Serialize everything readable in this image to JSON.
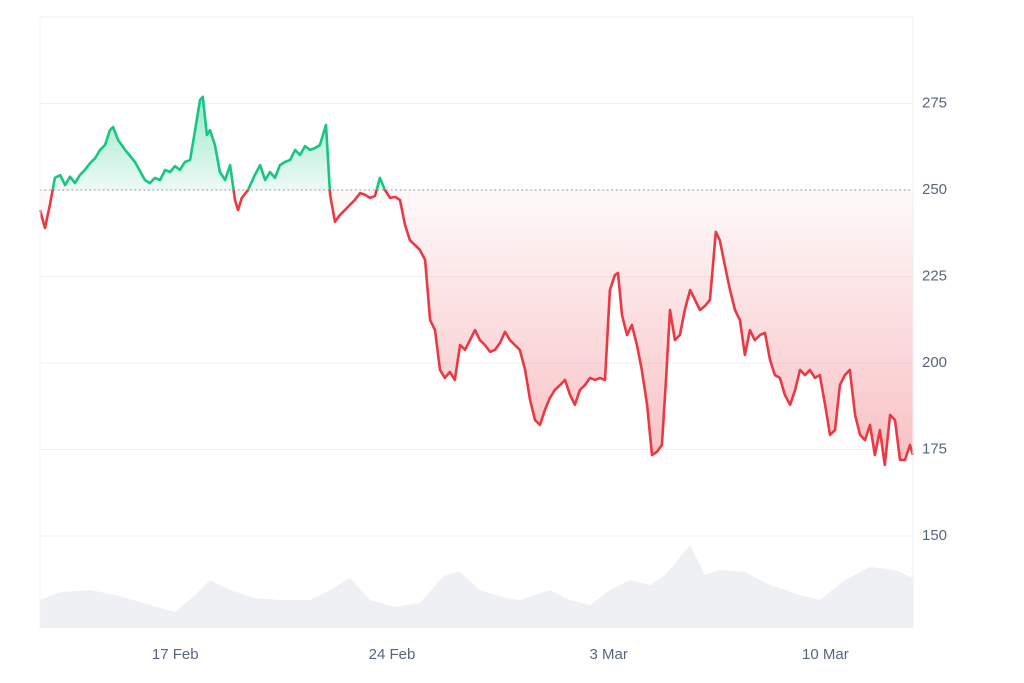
{
  "chart_data": {
    "type": "line",
    "baseline": 250,
    "up_color": "#16c784",
    "down_color": "#ea3943",
    "volume_color": "#eef0f3",
    "grid": true,
    "xlim": [
      43.63,
      71.83
    ],
    "xticks": [
      {
        "value": 48,
        "label": "17 Feb"
      },
      {
        "value": 55,
        "label": "24 Feb"
      },
      {
        "value": 62,
        "label": "3 Mar"
      },
      {
        "value": 69,
        "label": "10 Mar"
      }
    ],
    "ylim": [
      123.4,
      300
    ],
    "yticks": [
      150,
      175,
      200,
      225,
      250,
      275
    ],
    "y2lim": [
      0,
      100
    ],
    "x": [
      43.63,
      43.79,
      43.95,
      44.11,
      44.28,
      44.44,
      44.6,
      44.76,
      44.92,
      45.08,
      45.25,
      45.41,
      45.57,
      45.73,
      45.89,
      45.99,
      46.15,
      46.38,
      46.7,
      47.02,
      47.18,
      47.34,
      47.51,
      47.67,
      47.83,
      47.99,
      48.15,
      48.31,
      48.48,
      48.64,
      48.8,
      48.89,
      49.02,
      49.12,
      49.28,
      49.44,
      49.61,
      49.77,
      49.93,
      50.03,
      50.15,
      50.35,
      50.57,
      50.74,
      50.9,
      51.06,
      51.22,
      51.38,
      51.54,
      51.71,
      51.87,
      52.03,
      52.19,
      52.35,
      52.51,
      52.67,
      52.87,
      53.0,
      53.16,
      53.32,
      53.48,
      53.64,
      53.8,
      53.97,
      54.13,
      54.29,
      54.45,
      54.61,
      54.77,
      54.94,
      55.1,
      55.26,
      55.42,
      55.58,
      55.74,
      55.9,
      56.07,
      56.23,
      56.39,
      56.55,
      56.71,
      56.87,
      57.03,
      57.2,
      57.36,
      57.52,
      57.68,
      57.84,
      58.0,
      58.17,
      58.33,
      58.49,
      58.65,
      58.81,
      58.97,
      59.13,
      59.3,
      59.46,
      59.62,
      59.78,
      59.94,
      60.1,
      60.26,
      60.43,
      60.59,
      60.75,
      60.91,
      61.07,
      61.23,
      61.4,
      61.56,
      61.72,
      61.88,
      62.04,
      62.2,
      62.3,
      62.43,
      62.59,
      62.75,
      62.91,
      63.07,
      63.24,
      63.4,
      63.56,
      63.72,
      63.85,
      63.98,
      64.14,
      64.3,
      64.46,
      64.63,
      64.79,
      64.95,
      65.11,
      65.27,
      65.37,
      65.46,
      65.59,
      65.75,
      65.92,
      66.08,
      66.24,
      66.4,
      66.56,
      66.72,
      66.89,
      67.05,
      67.21,
      67.37,
      67.53,
      67.69,
      67.86,
      68.02,
      68.18,
      68.34,
      68.5,
      68.66,
      68.82,
      68.99,
      69.15,
      69.31,
      69.47,
      69.63,
      69.79,
      69.96,
      70.12,
      70.28,
      70.44,
      70.6,
      70.76,
      70.92,
      71.09,
      71.25,
      71.41,
      71.57,
      71.73,
      71.83
    ],
    "series": [
      {
        "values": [
          244.2,
          239,
          245.7,
          253.5,
          254.3,
          251.4,
          253.8,
          252,
          254.3,
          255.8,
          257.8,
          259.2,
          261.6,
          263,
          267.3,
          268.2,
          264.5,
          261.6,
          258.1,
          252.9,
          252,
          253.5,
          252.9,
          255.8,
          255.2,
          256.9,
          255.8,
          258.1,
          258.7,
          267.3,
          276,
          276.9,
          265.9,
          267.3,
          263,
          255.2,
          252.9,
          257.2,
          247.1,
          244.2,
          247.7,
          250,
          254.3,
          257.2,
          252.9,
          255.2,
          253.5,
          257.2,
          258.1,
          258.7,
          261.6,
          260.1,
          262.7,
          261.6,
          262.1,
          263,
          268.8,
          248.6,
          240.8,
          242.8,
          244.2,
          245.7,
          247.1,
          249.1,
          248.6,
          247.7,
          248.3,
          253.5,
          250,
          247.7,
          248,
          247.1,
          239.9,
          235.5,
          234.1,
          232.7,
          229.8,
          212.4,
          209.5,
          198,
          195.7,
          197.4,
          195.1,
          205.2,
          203.8,
          206.6,
          209.5,
          206.6,
          205.2,
          203.2,
          203.8,
          205.8,
          209,
          206.6,
          205.2,
          203.8,
          198,
          189.3,
          183.5,
          182.1,
          186.4,
          189.9,
          192.2,
          193.6,
          195.1,
          190.8,
          187.9,
          192.2,
          193.6,
          195.7,
          195.1,
          195.7,
          195.1,
          221.1,
          225.4,
          226,
          213.9,
          208.1,
          211,
          205.2,
          198,
          187.9,
          173.4,
          174.3,
          176.3,
          195.1,
          215.3,
          206.6,
          208.1,
          215.3,
          221.1,
          218.2,
          215.3,
          216.5,
          218.2,
          228.3,
          237.9,
          235.5,
          228.3,
          221.1,
          215.3,
          212.4,
          202.3,
          209.5,
          206.6,
          208.1,
          208.7,
          200.9,
          196.5,
          195.7,
          190.8,
          187.9,
          192.2,
          198,
          196.5,
          198,
          195.7,
          196.5,
          187.9,
          179.2,
          180.6,
          193.6,
          196.5,
          198,
          185,
          179.2,
          177.7,
          182.1,
          173.4,
          180.6,
          170.5,
          185,
          183.5,
          172,
          172,
          176.3,
          173.4
        ]
      }
    ],
    "volume": {
      "axis": "y2",
      "x": [
        43.63,
        44.28,
        45.25,
        46.21,
        47.18,
        47.99,
        48.64,
        49.12,
        49.77,
        50.57,
        51.38,
        52.35,
        53.0,
        53.64,
        54.29,
        55.1,
        55.9,
        56.71,
        57.2,
        57.84,
        58.65,
        59.13,
        60.1,
        60.75,
        61.4,
        62.04,
        62.69,
        63.33,
        63.82,
        64.63,
        65.11,
        65.59,
        66.4,
        67.21,
        68.18,
        68.82,
        69.63,
        70.44,
        71.25,
        71.83
      ],
      "values": [
        31.8,
        40.9,
        43.2,
        36.4,
        26.1,
        18.2,
        37.5,
        54.5,
        43.2,
        34.1,
        31.8,
        31.8,
        43.2,
        56.8,
        31.8,
        23.9,
        28.4,
        60.2,
        63.6,
        43.2,
        34.1,
        31.8,
        43.2,
        31.8,
        26.1,
        43.2,
        54.5,
        48.9,
        60.2,
        94.3,
        60.2,
        65.9,
        63.6,
        48.9,
        37.5,
        31.8,
        54.5,
        69.3,
        65.9,
        56.8
      ]
    }
  }
}
